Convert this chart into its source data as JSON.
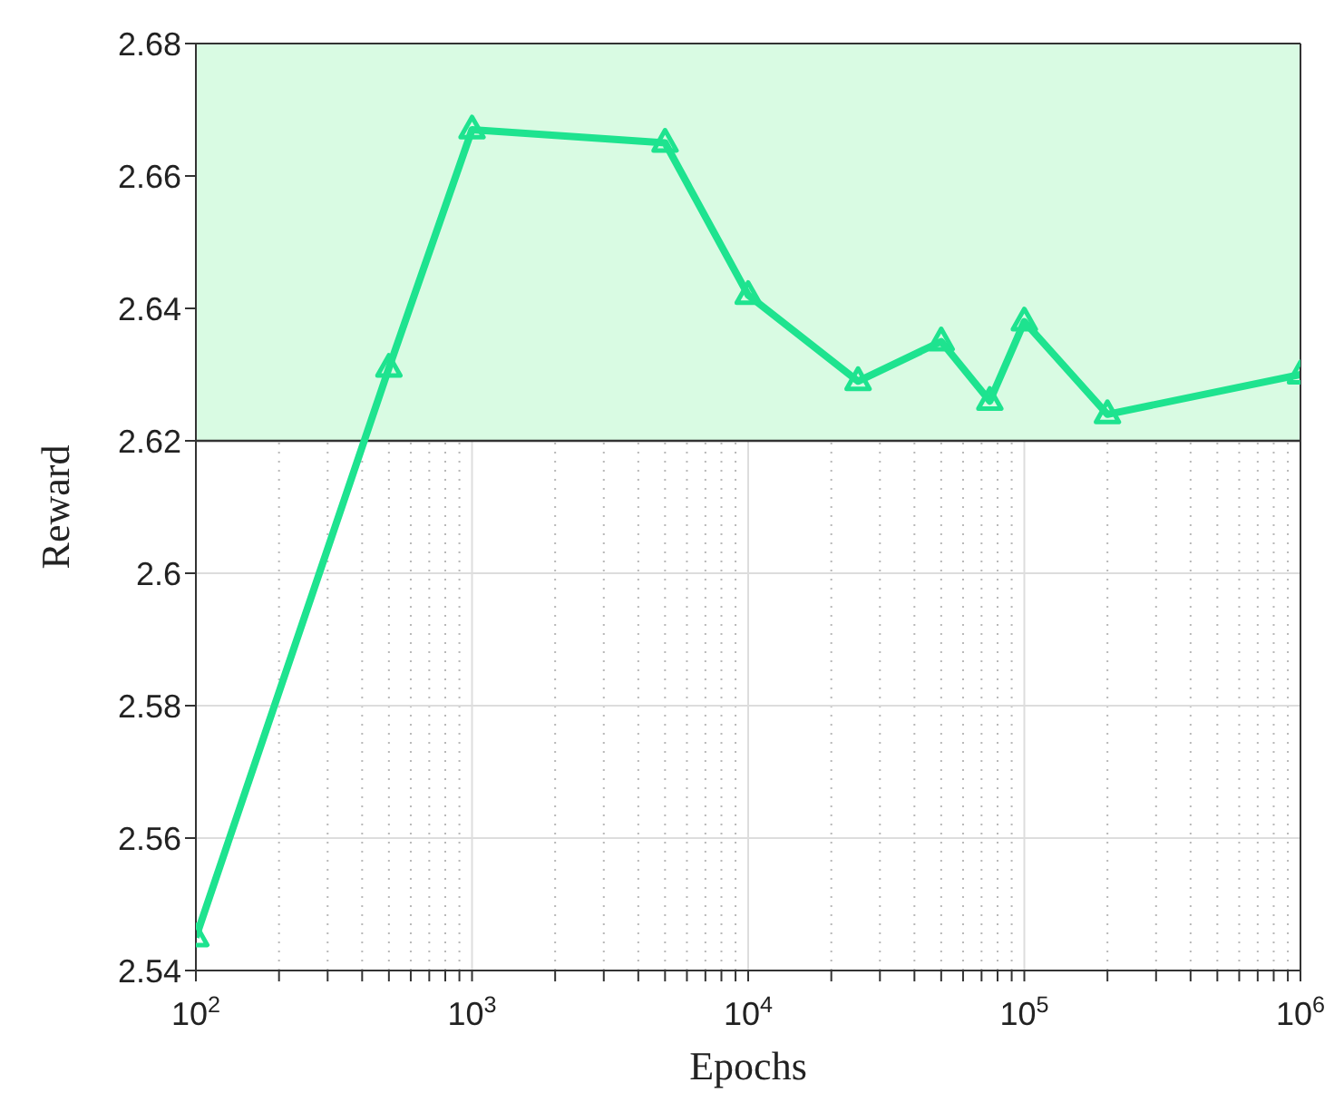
{
  "chart_data": {
    "type": "line",
    "xlabel": "Epochs",
    "ylabel": "Reward",
    "x": [
      100,
      500,
      1000,
      5000,
      10000,
      25000,
      50000,
      75000,
      100000,
      200000,
      1000000
    ],
    "series": [
      {
        "color": "#1ee38f",
        "values": [
          2.545,
          2.631,
          2.667,
          2.665,
          2.642,
          2.629,
          2.635,
          2.626,
          2.638,
          2.624,
          2.63
        ]
      }
    ],
    "log": "x",
    "xlim": [
      100,
      1000000
    ],
    "xticks": [
      {
        "value": 100,
        "label": "10$^{2}$"
      },
      {
        "value": 200,
        "label": null
      },
      {
        "value": 300,
        "label": null
      },
      {
        "value": 400,
        "label": null
      },
      {
        "value": 500,
        "label": null
      },
      {
        "value": 600,
        "label": null
      },
      {
        "value": 700,
        "label": null
      },
      {
        "value": 800,
        "label": null
      },
      {
        "value": 900,
        "label": null
      },
      {
        "value": 1000,
        "label": "10$^{3}$"
      },
      {
        "value": 2000,
        "label": null
      },
      {
        "value": 3000,
        "label": null
      },
      {
        "value": 4000,
        "label": null
      },
      {
        "value": 5000,
        "label": null
      },
      {
        "value": 6000,
        "label": null
      },
      {
        "value": 7000,
        "label": null
      },
      {
        "value": 8000,
        "label": null
      },
      {
        "value": 9000,
        "label": null
      },
      {
        "value": 10000,
        "label": "10$^{4}$"
      },
      {
        "value": 20000,
        "label": null
      },
      {
        "value": 30000,
        "label": null
      },
      {
        "value": 40000,
        "label": null
      },
      {
        "value": 50000,
        "label": null
      },
      {
        "value": 60000,
        "label": null
      },
      {
        "value": 70000,
        "label": null
      },
      {
        "value": 80000,
        "label": null
      },
      {
        "value": 90000,
        "label": null
      },
      {
        "value": 100000,
        "label": "10$^{5}$"
      },
      {
        "value": 200000,
        "label": null
      },
      {
        "value": 300000,
        "label": null
      },
      {
        "value": 400000,
        "label": null
      },
      {
        "value": 500000,
        "label": null
      },
      {
        "value": 600000,
        "label": null
      },
      {
        "value": 700000,
        "label": null
      },
      {
        "value": 800000,
        "label": null
      },
      {
        "value": 900000,
        "label": null
      },
      {
        "value": 1000000,
        "label": "10$^{6}$"
      }
    ],
    "ylim": [
      2.54,
      2.68
    ],
    "yticks": [
      2.54,
      2.56,
      2.58,
      2.6,
      2.62,
      2.64,
      2.66,
      2.68
    ],
    "bands": [
      {
        "axis": "y",
        "from": 2.62,
        "to": 2.68,
        "color": "#d9fbe3"
      }
    ],
    "ref_lines": [
      {
        "axis": "y",
        "value": 2.62,
        "color": "#333333"
      }
    ],
    "grid": true,
    "marker": "triangle",
    "line_style": "solid"
  }
}
